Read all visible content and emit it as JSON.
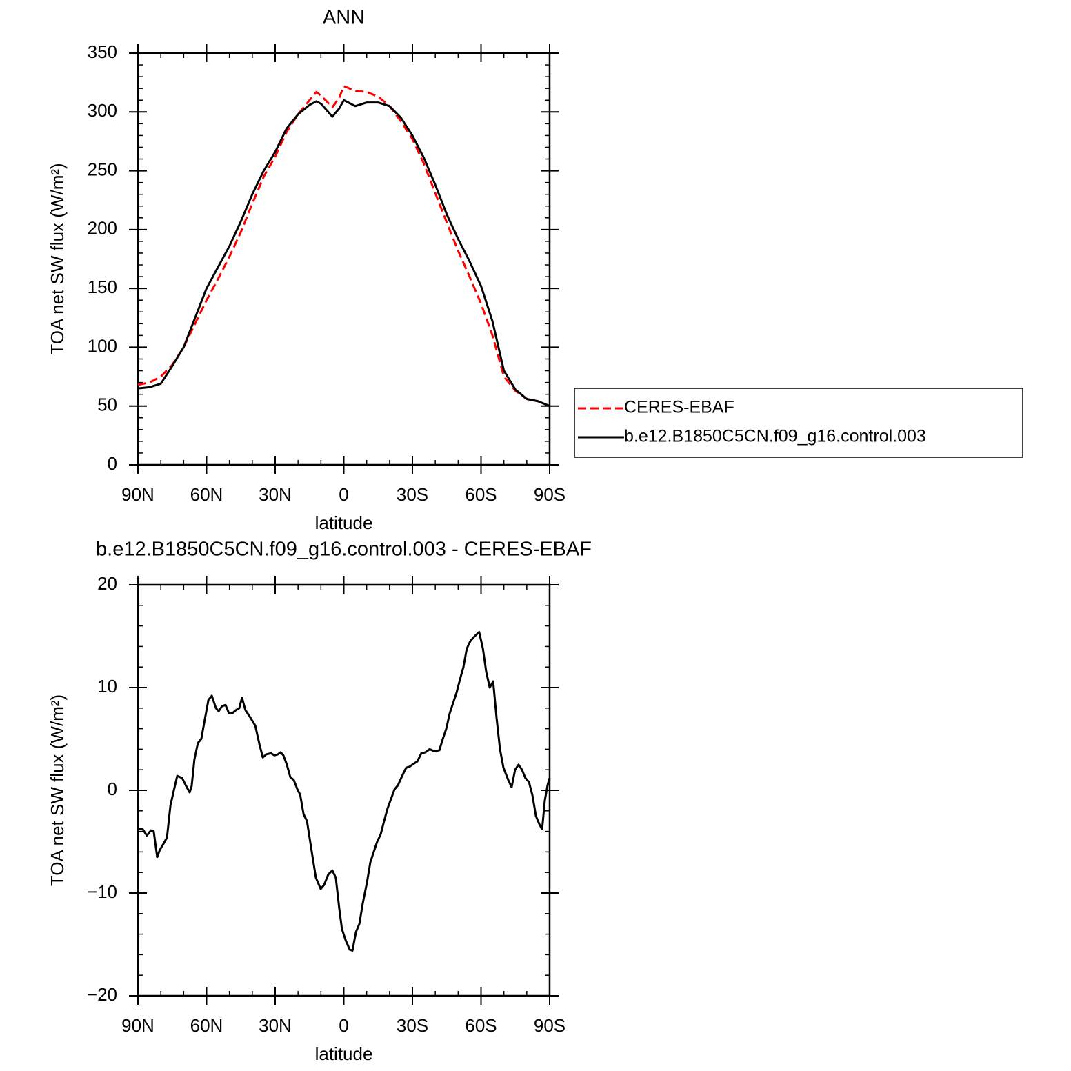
{
  "chart_data": [
    {
      "type": "line",
      "title": "ANN",
      "xlabel": "latitude",
      "ylabel": "TOA net SW flux (W/m²)",
      "x": [
        90,
        85,
        80,
        75,
        70,
        65,
        60,
        55,
        50,
        45,
        40,
        35,
        30,
        25,
        20,
        15,
        12,
        10,
        5,
        2,
        0,
        -5,
        -10,
        -15,
        -20,
        -25,
        -30,
        -35,
        -40,
        -45,
        -50,
        -55,
        -60,
        -65,
        -70,
        -75,
        -80,
        -85,
        -90
      ],
      "series": [
        {
          "name": "CERES-EBAF",
          "color": "#ff0000",
          "style": "dashed",
          "values": [
            68,
            70,
            75,
            85,
            100,
            120,
            140,
            158,
            177,
            198,
            222,
            245,
            262,
            283,
            298,
            310,
            317,
            314,
            304,
            312,
            322,
            318,
            317,
            313,
            305,
            292,
            277,
            256,
            231,
            206,
            182,
            160,
            137,
            110,
            75,
            63,
            56,
            54,
            50
          ]
        },
        {
          "name": "b.e12.B1850C5CN.f09_g16.control.003",
          "color": "#000000",
          "style": "solid",
          "values": [
            65,
            66,
            69,
            84,
            100,
            125,
            150,
            168,
            186,
            207,
            230,
            250,
            266,
            286,
            298,
            306,
            309,
            307,
            296,
            303,
            310,
            305,
            308,
            308,
            305,
            295,
            280,
            261,
            238,
            213,
            192,
            173,
            152,
            122,
            80,
            64,
            56,
            54,
            50
          ]
        }
      ],
      "xlim": [
        90,
        -90
      ],
      "xticks": [
        {
          "value": 90,
          "label": "90N"
        },
        {
          "value": 60,
          "label": "60N"
        },
        {
          "value": 30,
          "label": "30N"
        },
        0,
        {
          "value": -30,
          "label": "30S"
        },
        {
          "value": -60,
          "label": "60S"
        },
        {
          "value": -90,
          "label": "90S"
        }
      ],
      "ylim": [
        0,
        350
      ],
      "yticks": [
        0,
        50,
        100,
        150,
        200,
        250,
        300,
        350
      ],
      "legend": "right"
    },
    {
      "type": "line",
      "title": "b.e12.B1850C5CN.f09_g16.control.003 - CERES-EBAF",
      "xlabel": "latitude",
      "ylabel": "TOA net SW flux (W/m²)",
      "x": [
        90,
        87.9,
        86.1,
        84.3,
        83.1,
        81.6,
        80.4,
        78.8,
        77.3,
        75.8,
        74.3,
        72.8,
        70.7,
        68.9,
        67.4,
        66.5,
        65.3,
        63.8,
        62.3,
        61.1,
        59.2,
        57.7,
        55.9,
        54.7,
        53.2,
        51.7,
        50.2,
        48.7,
        47.2,
        45.7,
        44.5,
        43.0,
        41.2,
        38.7,
        36.9,
        35.4,
        33.9,
        31.8,
        30.3,
        28.8,
        27.6,
        26.4,
        24.9,
        23.4,
        21.9,
        20.1,
        19.1,
        17.6,
        16.1,
        14.0,
        12.2,
        10.1,
        8.6,
        6.8,
        5.0,
        3.5,
        2.0,
        0.8,
        -0.8,
        -2.6,
        -3.8,
        -5.3,
        -6.8,
        -8.3,
        -10.1,
        -11.6,
        -13.1,
        -14.6,
        -16.1,
        -17.6,
        -19.1,
        -20.7,
        -22.2,
        -23.7,
        -25.5,
        -27.3,
        -28.8,
        -30.6,
        -32.1,
        -33.9,
        -35.7,
        -37.5,
        -39.6,
        -41.8,
        -43.3,
        -44.8,
        -46.3,
        -47.8,
        -49.3,
        -50.8,
        -52.3,
        -53.8,
        -55.3,
        -56.8,
        -57.7,
        -59.2,
        -60.8,
        -62.3,
        -63.8,
        -65.3,
        -66.8,
        -68.3,
        -69.8,
        -71.9,
        -73.4,
        -74.9,
        -76.4,
        -77.9,
        -79.4,
        -81.0,
        -82.5,
        -84.0,
        -85.5,
        -86.7,
        -87.9,
        -89.1,
        -90
      ],
      "values": [
        -3.7,
        -3.8,
        -4.4,
        -3.9,
        -4.0,
        -6.5,
        -5.8,
        -5.2,
        -4.6,
        -1.5,
        0,
        1.4,
        1.2,
        0.4,
        -0.2,
        0.4,
        3,
        4.6,
        5,
        6.5,
        8.8,
        9.2,
        8,
        7.7,
        8.2,
        8.3,
        7.5,
        7.5,
        7.8,
        8.0,
        9,
        7.8,
        7.2,
        6.3,
        4.5,
        3.2,
        3.5,
        3.6,
        3.4,
        3.5,
        3.7,
        3.4,
        2.5,
        1.3,
        1,
        0,
        -0.4,
        -2.3,
        -3.0,
        -6,
        -8.5,
        -9.6,
        -9.2,
        -8.2,
        -7.8,
        -8.5,
        -11.5,
        -13.5,
        -14.6,
        -15.5,
        -15.6,
        -13.8,
        -13,
        -11,
        -9,
        -7,
        -6,
        -5,
        -4.3,
        -3,
        -1.8,
        -0.8,
        0.1,
        0.5,
        1.4,
        2.2,
        2.3,
        2.6,
        2.8,
        3.6,
        3.7,
        4.0,
        3.8,
        3.9,
        5.0,
        6.0,
        7.5,
        8.5,
        9.5,
        10.8,
        12,
        13.8,
        14.5,
        14.9,
        15.1,
        15.4,
        13.8,
        11.5,
        10,
        10.6,
        7,
        4,
        2.2,
        1,
        0.3,
        2,
        2.5,
        2,
        1.2,
        0.8,
        -0.5,
        -2.5,
        -3.3,
        -3.8,
        -1,
        0.5,
        1.2
      ],
      "color": "#000000",
      "style": "solid",
      "xlim": [
        90,
        -90
      ],
      "xticks": [
        {
          "value": 90,
          "label": "90N"
        },
        {
          "value": 60,
          "label": "60N"
        },
        {
          "value": 30,
          "label": "30N"
        },
        0,
        {
          "value": -30,
          "label": "30S"
        },
        {
          "value": -60,
          "label": "60S"
        },
        {
          "value": -90,
          "label": "90S"
        }
      ],
      "ylim": [
        -20,
        20
      ],
      "yticks": [
        {
          "value": -20,
          "label": "−20"
        },
        {
          "value": -10,
          "label": "−10"
        },
        0,
        10,
        20
      ]
    }
  ]
}
